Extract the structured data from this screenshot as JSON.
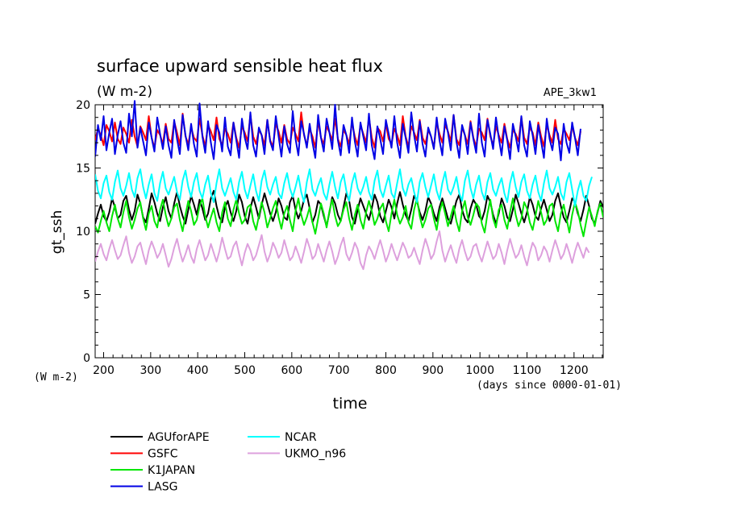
{
  "chart_data": {
    "type": "line",
    "title": "surface upward sensible heat flux",
    "subtitle": "(W m-2)",
    "experiment": "APE_3kw1",
    "xlabel": "time",
    "ylabel": "gt_ssh",
    "x_units": "(days since 0000-01-01)",
    "y_units": "(W m-2)",
    "xlim": [
      182,
      1262
    ],
    "ylim": [
      0,
      20
    ],
    "x_ticks": [
      200,
      300,
      400,
      500,
      600,
      700,
      800,
      900,
      1000,
      1100,
      1200
    ],
    "y_ticks": [
      0,
      5,
      10,
      15,
      20
    ],
    "x_tick_labels": [
      "200",
      "300",
      "400",
      "500",
      "600",
      "700",
      "800",
      "900",
      "1000",
      "1100",
      "1200"
    ],
    "y_tick_labels": [
      "0",
      "5",
      "10",
      "15",
      "20"
    ],
    "x_start": 182,
    "x_step": 6,
    "grid": false,
    "legend_position": "bottom-left",
    "series": [
      {
        "name": "AGUforAPE",
        "color": "#000000",
        "values": [
          10.6,
          11.4,
          12.1,
          11.2,
          10.8,
          11.5,
          12.6,
          11.9,
          11.0,
          11.3,
          12.4,
          12.8,
          11.7,
          10.9,
          11.6,
          12.9,
          12.2,
          11.1,
          10.7,
          11.8,
          13.0,
          12.3,
          11.4,
          10.8,
          11.9,
          12.7,
          11.6,
          11.0,
          12.2,
          13.1,
          12.0,
          11.2,
          10.6,
          11.7,
          12.8,
          12.1,
          11.3,
          12.5,
          11.8,
          10.9,
          11.4,
          12.6,
          13.2,
          12.0,
          11.1,
          10.7,
          11.9,
          12.4,
          11.5,
          10.8,
          11.6,
          12.9,
          12.3,
          11.2,
          10.6,
          11.8,
          12.7,
          11.9,
          11.0,
          12.1,
          13.0,
          12.2,
          11.4,
          10.8,
          11.5,
          12.6,
          12.0,
          11.1,
          10.9,
          12.3,
          12.8,
          11.7,
          11.0,
          11.6,
          12.5,
          12.9,
          11.8,
          10.7,
          11.3,
          12.4,
          12.1,
          11.2,
          10.4,
          11.5,
          12.7,
          12.2,
          11.3,
          10.8,
          11.9,
          13.0,
          12.4,
          11.1,
          10.6,
          11.7,
          12.6,
          12.0,
          11.4,
          10.9,
          11.8,
          12.9,
          12.3,
          11.2,
          10.7,
          11.6,
          12.5,
          11.9,
          11.0,
          12.2,
          13.1,
          12.1,
          11.3,
          10.8,
          11.7,
          12.8,
          12.4,
          11.5,
          10.9,
          11.6,
          12.7,
          12.2,
          11.4,
          10.8,
          11.9,
          12.6,
          11.8,
          11.0,
          10.6,
          11.5,
          12.4,
          12.9,
          11.7,
          11.0,
          10.7,
          11.8,
          12.5,
          12.1,
          11.2,
          10.9,
          11.6,
          12.8,
          12.3,
          11.3,
          10.6,
          11.4,
          12.6,
          12.0,
          11.1,
          10.8,
          11.7,
          12.9,
          12.2,
          11.4,
          10.7,
          11.5,
          12.7,
          12.1,
          11.2,
          10.9,
          11.8,
          12.5,
          11.7,
          10.8,
          11.3,
          12.4,
          13.0,
          12.0,
          11.1,
          10.7,
          11.6,
          12.6,
          12.3,
          11.4,
          10.8,
          11.7,
          12.8,
          12.0,
          11.0,
          10.6,
          11.5,
          12.4,
          11.9
        ]
      },
      {
        "name": "GSFC",
        "color": "#ff0000",
        "values": [
          17.2,
          18.1,
          17.6,
          16.8,
          18.4,
          17.9,
          17.1,
          18.6,
          17.3,
          16.9,
          18.2,
          17.7,
          17.0,
          18.8,
          17.5,
          16.7,
          18.3,
          17.8,
          17.2,
          19.1,
          17.4,
          16.6,
          18.0,
          17.6,
          16.9,
          18.5,
          17.3,
          17.0,
          18.7,
          17.8,
          16.8,
          19.3,
          17.5,
          16.9,
          18.2,
          17.4,
          17.1,
          18.9,
          17.6,
          16.7,
          18.4,
          17.9,
          17.2,
          19.0,
          17.3,
          16.8,
          18.1,
          17.7,
          17.0,
          18.6,
          17.4,
          16.6,
          18.3,
          17.8,
          17.1,
          19.2,
          17.5,
          16.9,
          18.0,
          17.6,
          16.8,
          18.8,
          17.2,
          16.7,
          18.5,
          17.9,
          17.0,
          18.4,
          17.3,
          16.9,
          18.2,
          17.7,
          17.1,
          19.4,
          17.6,
          16.8,
          18.1,
          17.5,
          16.6,
          18.7,
          17.4,
          16.9,
          18.3,
          17.8,
          17.2,
          18.9,
          17.3,
          16.7,
          18.0,
          17.6,
          16.9,
          18.6,
          17.5,
          16.8,
          18.4,
          17.7,
          17.0,
          19.0,
          17.4,
          16.6,
          18.2,
          17.9,
          17.1,
          18.5,
          17.3,
          16.9,
          18.1,
          17.6,
          16.8,
          19.1,
          17.5,
          16.7,
          18.3,
          17.8,
          17.2,
          18.8,
          17.4,
          16.9,
          18.0,
          17.5,
          16.6,
          18.6,
          17.7,
          17.0,
          18.4,
          17.9,
          17.1,
          19.2,
          17.3,
          16.8,
          18.2,
          17.6,
          16.9,
          18.7,
          17.4,
          16.7,
          18.1,
          17.8,
          17.2,
          18.9,
          17.5,
          16.8,
          18.3,
          17.6,
          17.0,
          18.5,
          17.3,
          16.6,
          18.0,
          17.7,
          17.1,
          19.0,
          17.4,
          16.9,
          18.2,
          17.8,
          16.8,
          18.6,
          17.5,
          16.7,
          18.4,
          17.6,
          17.0,
          18.8,
          17.3,
          16.9,
          18.1,
          17.7,
          17.2,
          18.3,
          17.4,
          16.8,
          17.9
        ]
      },
      {
        "name": "K1JAPAN",
        "color": "#00e600",
        "values": [
          10.4,
          9.9,
          10.8,
          11.6,
          10.7,
          10.0,
          11.2,
          12.1,
          11.0,
          10.3,
          11.5,
          12.4,
          11.1,
          10.2,
          10.9,
          11.8,
          12.3,
          11.0,
          10.1,
          11.4,
          12.0,
          10.8,
          10.3,
          11.7,
          12.5,
          11.3,
          10.4,
          11.0,
          11.9,
          12.2,
          10.9,
          10.0,
          11.3,
          12.4,
          11.6,
          10.5,
          10.9,
          12.0,
          12.6,
          11.2,
          10.3,
          11.1,
          11.8,
          10.7,
          10.0,
          11.5,
          12.3,
          11.0,
          10.4,
          11.7,
          12.5,
          11.4,
          10.6,
          10.9,
          11.9,
          12.1,
          10.8,
          10.1,
          11.2,
          12.3,
          11.5,
          10.3,
          11.0,
          11.8,
          12.4,
          11.1,
          10.2,
          11.4,
          12.0,
          10.9,
          10.0,
          11.6,
          12.6,
          11.3,
          10.5,
          11.1,
          11.9,
          10.7,
          9.8,
          11.0,
          12.2,
          11.4,
          10.3,
          11.6,
          12.5,
          11.2,
          10.4,
          10.8,
          11.7,
          12.3,
          11.0,
          10.1,
          11.3,
          12.1,
          10.9,
          10.2,
          11.5,
          12.4,
          11.6,
          10.5,
          11.0,
          11.8,
          12.2,
          10.8,
          10.0,
          11.4,
          12.5,
          11.3,
          10.6,
          11.1,
          12.0,
          10.7,
          10.2,
          11.7,
          12.6,
          11.2,
          10.3,
          10.9,
          11.8,
          12.1,
          11.0,
          10.1,
          11.5,
          12.3,
          11.4,
          10.4,
          11.2,
          12.0,
          10.8,
          10.0,
          11.6,
          12.4,
          11.1,
          10.5,
          11.3,
          12.2,
          11.9,
          10.6,
          9.9,
          11.4,
          12.5,
          11.0,
          10.3,
          11.7,
          12.1,
          10.9,
          10.2,
          11.5,
          12.6,
          11.3,
          10.4,
          11.0,
          12.3,
          11.8,
          10.7,
          10.1,
          11.2,
          12.4,
          11.5,
          10.5,
          10.9,
          12.0,
          12.2,
          10.8,
          10.0,
          11.4,
          12.1,
          11.0,
          9.9,
          11.3,
          12.3,
          11.6,
          10.5,
          9.6,
          10.8,
          11.9,
          11.2,
          10.4,
          11.6,
          12.2,
          11.1
        ]
      },
      {
        "name": "LASG",
        "color": "#0000e6",
        "values": [
          15.9,
          18.4,
          17.2,
          19.1,
          16.4,
          17.8,
          18.9,
          16.1,
          17.6,
          18.7,
          17.0,
          16.2,
          19.3,
          17.5,
          20.3,
          16.6,
          18.2,
          17.1,
          16.0,
          18.6,
          17.4,
          16.3,
          19.0,
          17.7,
          16.5,
          18.3,
          16.8,
          15.8,
          18.8,
          17.3,
          16.1,
          19.2,
          17.6,
          16.4,
          18.5,
          16.9,
          15.9,
          20.1,
          17.5,
          16.2,
          18.7,
          17.0,
          15.7,
          18.4,
          17.8,
          16.3,
          19.0,
          16.7,
          16.0,
          18.6,
          17.2,
          15.8,
          18.9,
          17.4,
          16.5,
          19.4,
          16.8,
          15.9,
          18.2,
          17.6,
          16.1,
          18.8,
          17.1,
          16.4,
          19.1,
          17.5,
          15.9,
          18.3,
          16.9,
          16.2,
          19.5,
          17.3,
          16.0,
          18.7,
          17.7,
          16.6,
          18.5,
          17.0,
          15.8,
          19.2,
          17.4,
          16.3,
          18.9,
          17.8,
          16.5,
          20.0,
          17.2,
          16.0,
          18.4,
          17.6,
          16.2,
          19.0,
          17.1,
          15.9,
          18.6,
          17.5,
          16.4,
          19.3,
          16.8,
          15.7,
          18.3,
          17.3,
          16.1,
          18.8,
          17.7,
          16.6,
          19.1,
          17.0,
          15.8,
          18.5,
          17.4,
          16.2,
          19.4,
          17.6,
          16.3,
          18.7,
          16.9,
          15.9,
          18.2,
          17.5,
          16.5,
          19.0,
          17.2,
          16.0,
          18.9,
          17.8,
          16.4,
          19.2,
          17.1,
          15.8,
          18.4,
          17.6,
          16.1,
          18.6,
          17.3,
          16.2,
          19.3,
          17.0,
          15.9,
          18.8,
          17.7,
          16.5,
          19.0,
          17.4,
          16.0,
          18.3,
          17.2,
          15.7,
          18.5,
          17.5,
          16.3,
          19.1,
          16.8,
          15.9,
          18.7,
          17.6,
          16.1,
          18.4,
          17.1,
          15.8,
          18.9,
          17.3,
          16.4,
          18.2,
          17.7,
          15.6,
          18.5,
          17.0,
          16.2,
          18.6,
          17.4,
          16.0,
          18.1
        ]
      },
      {
        "name": "NCAR",
        "color": "#00ffff",
        "values": [
          14.5,
          13.2,
          12.6,
          13.8,
          14.4,
          13.1,
          12.5,
          13.9,
          14.8,
          13.4,
          12.8,
          13.6,
          14.6,
          13.3,
          12.7,
          14.2,
          14.9,
          13.5,
          12.6,
          13.7,
          14.5,
          13.0,
          12.4,
          13.8,
          14.7,
          13.4,
          12.9,
          13.6,
          14.3,
          13.1,
          12.5,
          14.0,
          14.8,
          13.5,
          12.7,
          13.9,
          14.6,
          13.2,
          12.6,
          13.7,
          14.4,
          13.0,
          12.3,
          13.8,
          14.9,
          13.4,
          12.8,
          13.5,
          14.2,
          13.1,
          12.5,
          13.9,
          14.7,
          13.3,
          12.6,
          13.6,
          14.5,
          13.2,
          12.4,
          14.0,
          14.8,
          13.5,
          12.9,
          13.7,
          14.3,
          13.0,
          12.6,
          13.8,
          14.6,
          13.4,
          12.7,
          13.5,
          14.4,
          13.1,
          12.3,
          13.9,
          14.9,
          13.3,
          12.8,
          13.6,
          14.2,
          13.0,
          12.5,
          13.7,
          14.7,
          13.5,
          12.6,
          13.9,
          14.5,
          13.2,
          12.4,
          13.8,
          14.6,
          13.4,
          12.9,
          13.5,
          14.3,
          13.1,
          12.5,
          14.0,
          14.8,
          13.3,
          12.7,
          13.6,
          14.4,
          13.0,
          12.6,
          13.8,
          14.9,
          13.4,
          12.8,
          13.7,
          14.2,
          13.1,
          12.3,
          13.9,
          14.6,
          13.5,
          12.7,
          13.6,
          14.5,
          13.2,
          12.5,
          13.8,
          14.7,
          13.3,
          12.9,
          13.5,
          14.3,
          13.0,
          12.4,
          14.0,
          14.8,
          13.4,
          12.6,
          13.7,
          14.4,
          13.1,
          12.5,
          13.9,
          14.6,
          13.3,
          12.8,
          13.6,
          14.2,
          13.0,
          12.3,
          13.8,
          14.7,
          13.5,
          12.7,
          13.9,
          14.5,
          13.2,
          12.6,
          13.7,
          14.4,
          13.1,
          12.4,
          13.8,
          14.8,
          13.4,
          12.9,
          13.5,
          14.3,
          13.0,
          12.5,
          13.9,
          14.6,
          13.3,
          12.0,
          13.2,
          14.0,
          12.8,
          12.4,
          13.6,
          14.3
        ]
      },
      {
        "name": "UKMO_n96",
        "color": "#dda0dd",
        "values": [
          7.6,
          8.4,
          9.0,
          8.2,
          7.7,
          8.6,
          9.3,
          8.5,
          7.8,
          8.1,
          8.9,
          9.6,
          8.3,
          7.5,
          8.0,
          8.8,
          9.1,
          8.2,
          7.4,
          8.5,
          9.2,
          8.6,
          7.9,
          8.3,
          9.0,
          8.1,
          7.2,
          7.8,
          8.7,
          9.4,
          8.4,
          7.6,
          8.2,
          8.9,
          8.0,
          7.5,
          8.6,
          9.3,
          8.5,
          7.7,
          8.1,
          9.0,
          8.3,
          7.6,
          8.4,
          9.5,
          8.6,
          7.8,
          8.0,
          8.8,
          9.2,
          8.2,
          7.3,
          8.3,
          9.0,
          8.5,
          7.7,
          8.1,
          8.9,
          9.7,
          8.4,
          7.6,
          8.2,
          9.1,
          8.6,
          7.9,
          8.3,
          9.3,
          8.5,
          7.7,
          8.0,
          8.8,
          8.2,
          7.5,
          8.4,
          9.4,
          8.7,
          7.8,
          8.1,
          9.0,
          8.3,
          7.6,
          8.5,
          9.2,
          8.4,
          7.4,
          8.0,
          8.9,
          9.5,
          8.2,
          7.7,
          8.3,
          9.1,
          8.6,
          7.5,
          7.0,
          8.1,
          8.8,
          8.4,
          7.8,
          8.6,
          9.3,
          8.5,
          7.6,
          8.2,
          9.0,
          8.3,
          7.7,
          8.4,
          9.1,
          8.6,
          7.9,
          8.1,
          8.7,
          8.0,
          7.4,
          8.5,
          9.4,
          8.7,
          7.8,
          8.2,
          9.2,
          10.0,
          8.5,
          7.6,
          8.3,
          8.9,
          8.1,
          7.5,
          8.6,
          9.3,
          8.4,
          7.7,
          8.0,
          8.8,
          9.0,
          8.2,
          7.6,
          8.4,
          9.2,
          8.5,
          7.8,
          8.1,
          9.0,
          8.3,
          7.4,
          8.5,
          9.4,
          8.6,
          7.9,
          8.2,
          8.9,
          8.0,
          7.3,
          8.3,
          9.1,
          8.7,
          7.7,
          8.1,
          8.8,
          8.4,
          7.6,
          8.5,
          9.3,
          8.6,
          7.8,
          8.2,
          9.0,
          8.3,
          7.5,
          8.4,
          9.1,
          8.5,
          7.9,
          8.7,
          8.3
        ]
      }
    ]
  }
}
